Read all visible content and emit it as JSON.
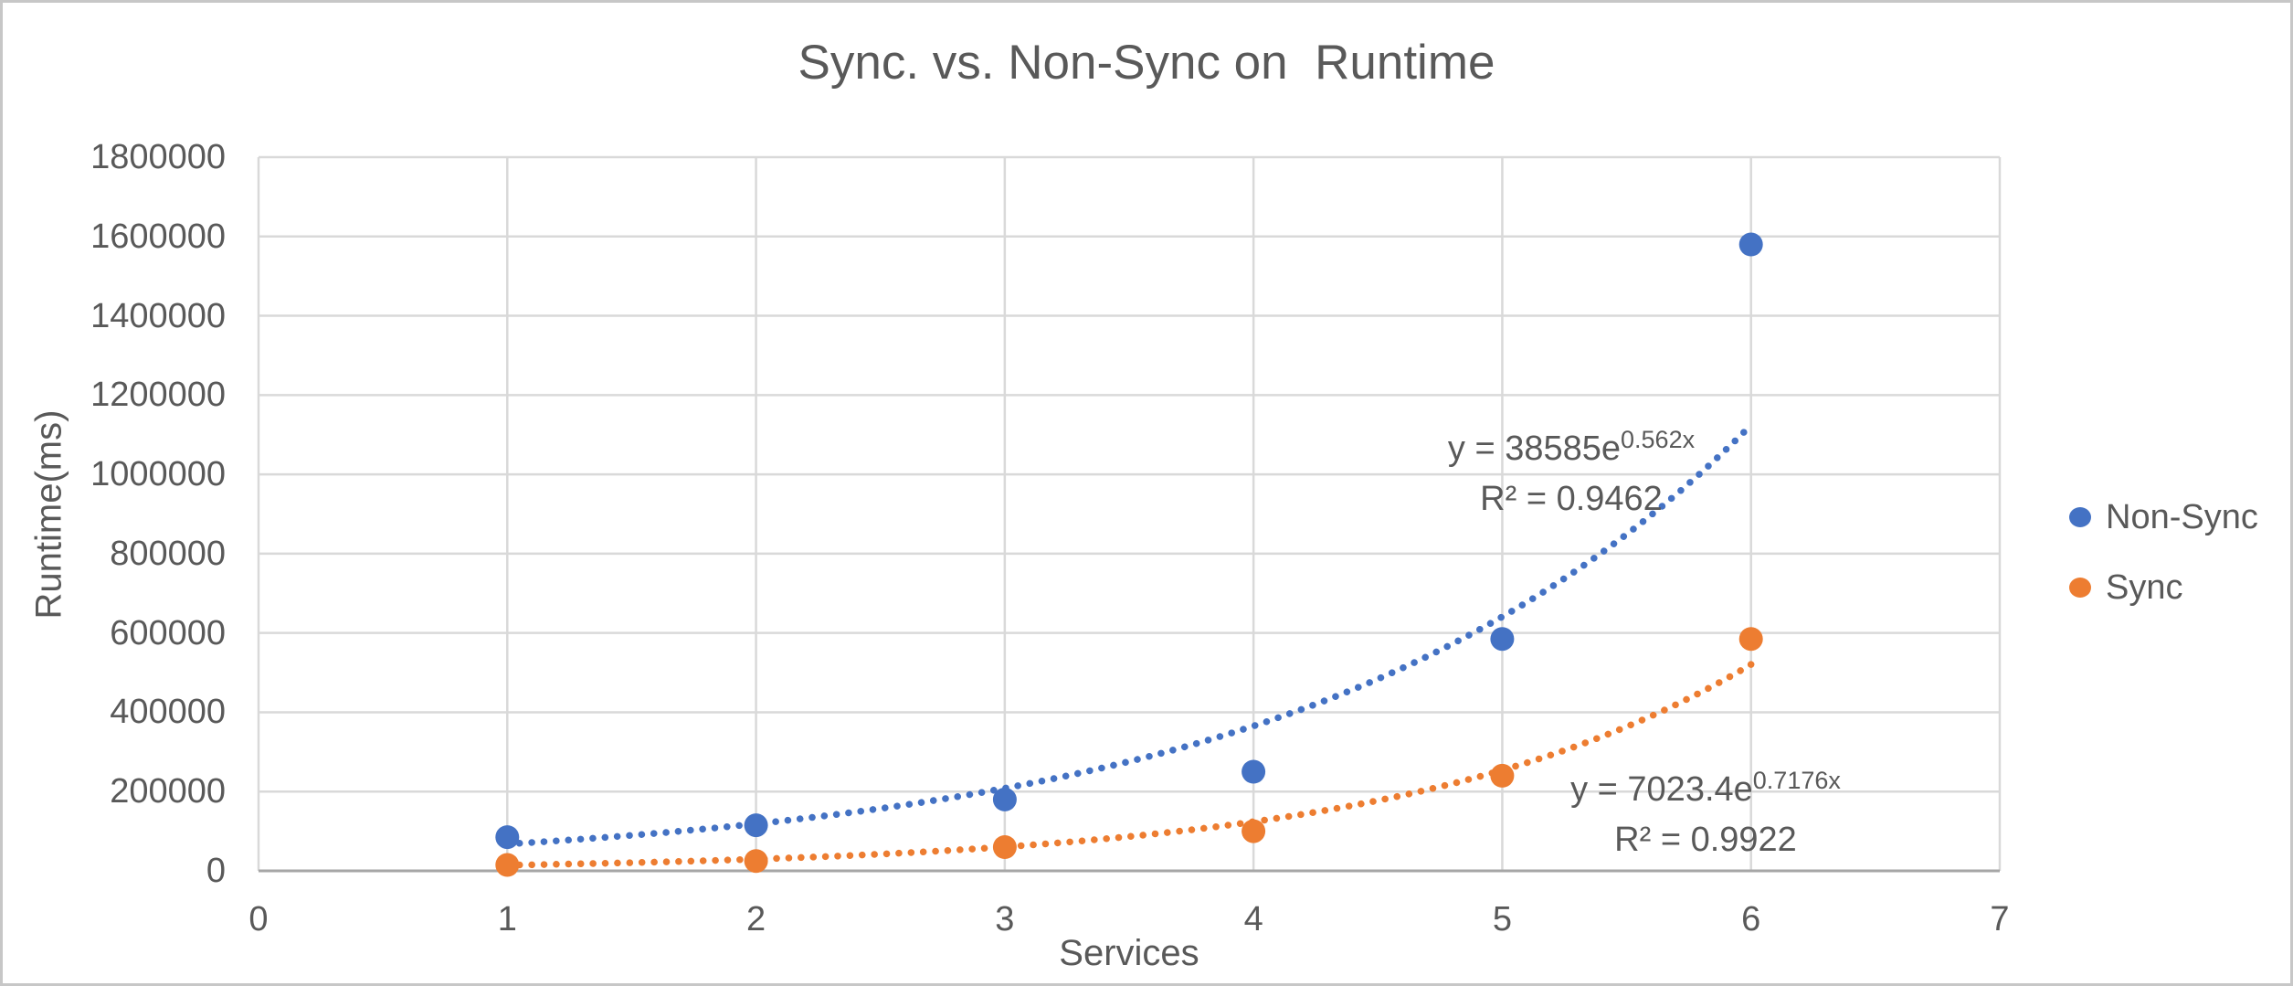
{
  "chart_data": {
    "type": "scatter",
    "title": "Sync. vs. Non-Sync on  Runtime",
    "xlabel": "Services",
    "ylabel": "Runtime(ms)",
    "xlim": [
      0,
      7
    ],
    "ylim": [
      0,
      1800000
    ],
    "x_ticks": [
      0,
      1,
      2,
      3,
      4,
      5,
      6,
      7
    ],
    "y_ticks": [
      0,
      200000,
      400000,
      600000,
      800000,
      1000000,
      1200000,
      1400000,
      1600000,
      1800000
    ],
    "grid": true,
    "legend_position": "right-middle",
    "series": [
      {
        "name": "Non-Sync",
        "color": "#4472C4",
        "x": [
          1,
          2,
          3,
          4,
          5,
          6
        ],
        "values": [
          85000,
          115000,
          180000,
          250000,
          585000,
          1580000
        ],
        "trendline": {
          "type": "exponential",
          "a": 38585,
          "b": 0.562,
          "x_start": 1,
          "x_end": 6,
          "equation_base": "y = 38585e",
          "equation_exponent": "0.562x",
          "r_squared": "R² = 0.9462"
        }
      },
      {
        "name": "Sync",
        "color": "#ED7D31",
        "x": [
          1,
          2,
          3,
          4,
          5,
          6
        ],
        "values": [
          15000,
          25000,
          60000,
          100000,
          240000,
          585000
        ],
        "trendline": {
          "type": "exponential",
          "a": 7023.4,
          "b": 0.7176,
          "x_start": 1,
          "x_end": 6,
          "equation_base": "y = 7023.4e",
          "equation_exponent": "0.7176x",
          "r_squared": "R² = 0.9922"
        }
      }
    ]
  },
  "legend": {
    "items": [
      {
        "label": "Non-Sync",
        "color": "#4472C4"
      },
      {
        "label": "Sync",
        "color": "#ED7D31"
      }
    ]
  },
  "colors": {
    "grid": "#D9D9D9",
    "axis": "#A6A6A6",
    "text": "#595959",
    "border": "#C7C7C7",
    "background": "#FFFFFF"
  }
}
